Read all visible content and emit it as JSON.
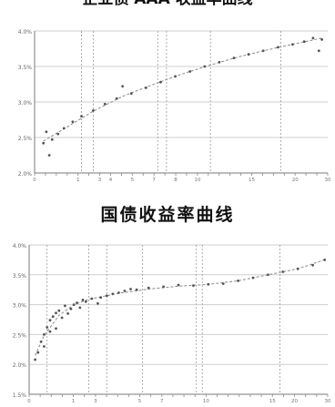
{
  "top_title": "企业债 AAA 收益率曲线",
  "bottom_title": "国债收益率曲线",
  "chart_data": [
    {
      "type": "scatter",
      "title": "企业债 AAA 收益率曲线",
      "ylim": [
        2.0,
        4.0
      ],
      "xlim": [
        0,
        1
      ],
      "grid": true,
      "y_ticks": [
        "2.0%",
        "2.5%",
        "3.0%",
        "3.5%",
        "4.0%"
      ],
      "x_ticks": [
        "0",
        "",
        "",
        "",
        "1",
        "",
        "3",
        "4",
        "",
        "5",
        "",
        "7",
        "",
        "8",
        "",
        "10",
        "",
        "",
        "",
        "",
        "15",
        "",
        "",
        "",
        "20",
        "",
        "",
        "30"
      ],
      "series": [
        {
          "points": [
            [
              0.03,
              2.42
            ],
            [
              0.04,
              2.58
            ],
            [
              0.05,
              2.25
            ],
            [
              0.06,
              2.47
            ],
            [
              0.08,
              2.55
            ],
            [
              0.1,
              2.63
            ],
            [
              0.13,
              2.72
            ],
            [
              0.16,
              2.8
            ],
            [
              0.2,
              2.88
            ],
            [
              0.24,
              2.97
            ],
            [
              0.28,
              3.05
            ],
            [
              0.3,
              3.22
            ],
            [
              0.33,
              3.12
            ],
            [
              0.38,
              3.2
            ],
            [
              0.43,
              3.28
            ],
            [
              0.48,
              3.36
            ],
            [
              0.53,
              3.43
            ],
            [
              0.58,
              3.5
            ],
            [
              0.63,
              3.56
            ],
            [
              0.68,
              3.62
            ],
            [
              0.73,
              3.67
            ],
            [
              0.78,
              3.72
            ],
            [
              0.83,
              3.77
            ],
            [
              0.88,
              3.81
            ],
            [
              0.92,
              3.85
            ],
            [
              0.95,
              3.9
            ],
            [
              0.97,
              3.72
            ],
            [
              0.98,
              3.88
            ]
          ]
        },
        {
          "line": [
            [
              0.03,
              2.45
            ],
            [
              0.1,
              2.62
            ],
            [
              0.2,
              2.87
            ],
            [
              0.3,
              3.08
            ],
            [
              0.4,
              3.24
            ],
            [
              0.5,
              3.39
            ],
            [
              0.6,
              3.52
            ],
            [
              0.7,
              3.64
            ],
            [
              0.8,
              3.74
            ],
            [
              0.9,
              3.83
            ],
            [
              0.98,
              3.9
            ]
          ]
        }
      ]
    },
    {
      "type": "scatter",
      "title": "国债收益率曲线",
      "ylim": [
        1.5,
        4.0
      ],
      "xlim": [
        0,
        1
      ],
      "grid": true,
      "y_ticks": [
        "1.5%",
        "2.0%",
        "2.5%",
        "3.0%",
        "3.5%",
        "4.0%"
      ],
      "x_ticks": [
        "0",
        "",
        "",
        "",
        "1",
        "",
        "3",
        "",
        "",
        "",
        "5",
        "",
        "7",
        "",
        "",
        "",
        "10",
        "",
        "",
        "",
        "",
        "",
        "15",
        "",
        "20",
        "",
        "",
        "30"
      ],
      "series": [
        {
          "points": [
            [
              0.02,
              2.08
            ],
            [
              0.03,
              2.2
            ],
            [
              0.04,
              2.38
            ],
            [
              0.05,
              2.5
            ],
            [
              0.06,
              2.62
            ],
            [
              0.07,
              2.74
            ],
            [
              0.08,
              2.8
            ],
            [
              0.09,
              2.86
            ],
            [
              0.1,
              2.9
            ],
            [
              0.12,
              2.98
            ],
            [
              0.14,
              2.93
            ],
            [
              0.16,
              3.03
            ],
            [
              0.18,
              3.08
            ],
            [
              0.21,
              3.1
            ],
            [
              0.24,
              3.12
            ],
            [
              0.28,
              3.18
            ],
            [
              0.32,
              3.23
            ],
            [
              0.36,
              3.25
            ],
            [
              0.4,
              3.28
            ],
            [
              0.45,
              3.3
            ],
            [
              0.5,
              3.33
            ],
            [
              0.55,
              3.32
            ],
            [
              0.6,
              3.34
            ],
            [
              0.65,
              3.35
            ],
            [
              0.7,
              3.4
            ],
            [
              0.75,
              3.45
            ],
            [
              0.8,
              3.5
            ],
            [
              0.85,
              3.55
            ],
            [
              0.9,
              3.6
            ],
            [
              0.95,
              3.66
            ],
            [
              0.99,
              3.75
            ],
            [
              0.05,
              2.3
            ],
            [
              0.07,
              2.55
            ],
            [
              0.09,
              2.6
            ],
            [
              0.11,
              2.78
            ],
            [
              0.13,
              2.85
            ],
            [
              0.15,
              3.0
            ],
            [
              0.17,
              2.95
            ],
            [
              0.19,
              3.05
            ],
            [
              0.23,
              3.02
            ],
            [
              0.26,
              3.15
            ],
            [
              0.3,
              3.2
            ],
            [
              0.34,
              3.26
            ]
          ]
        },
        {
          "line": [
            [
              0.02,
              2.15
            ],
            [
              0.05,
              2.48
            ],
            [
              0.1,
              2.82
            ],
            [
              0.15,
              3.0
            ],
            [
              0.2,
              3.09
            ],
            [
              0.3,
              3.19
            ],
            [
              0.4,
              3.26
            ],
            [
              0.5,
              3.31
            ],
            [
              0.6,
              3.34
            ],
            [
              0.7,
              3.4
            ],
            [
              0.8,
              3.5
            ],
            [
              0.9,
              3.6
            ],
            [
              0.99,
              3.75
            ]
          ]
        }
      ]
    }
  ]
}
